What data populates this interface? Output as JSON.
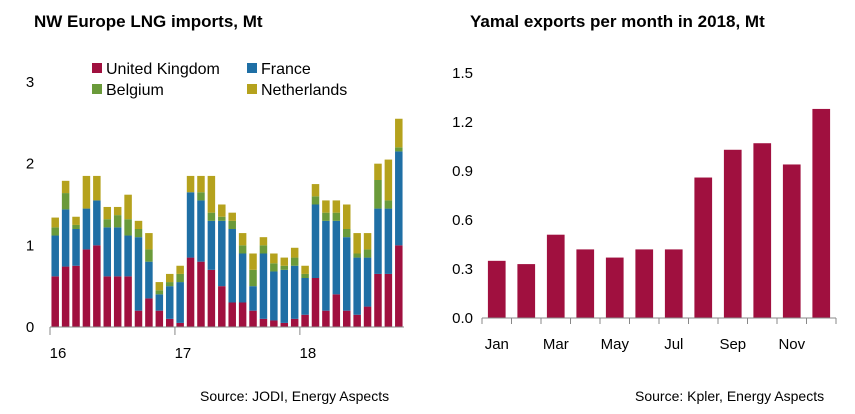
{
  "charts": {
    "left": {
      "title": "NW Europe LNG imports, Mt",
      "source": "Source:  JODI, Energy Aspects"
    },
    "right": {
      "title": "Yamal exports per month in 2018, Mt",
      "source": "Source:  Kpler, Energy Aspects"
    }
  },
  "chart_data": [
    {
      "type": "bar",
      "stacked": true,
      "title": "NW Europe LNG imports, Mt",
      "xlabel": "",
      "ylabel": "",
      "ylim": [
        0,
        3
      ],
      "yticks": [
        "0",
        "1",
        "2",
        "3"
      ],
      "xtick_labels": [
        {
          "index": 0,
          "label": "16"
        },
        {
          "index": 12,
          "label": "17"
        },
        {
          "index": 24,
          "label": "18"
        }
      ],
      "grid": false,
      "legend_placement": "top",
      "legend": [
        "United Kingdom",
        "France",
        "Belgium",
        "Netherlands"
      ],
      "colors": {
        "United Kingdom": "#a0103f",
        "France": "#1f6fa5",
        "Belgium": "#6a9a3a",
        "Netherlands": "#b5a21d"
      },
      "series": [
        {
          "name": "United Kingdom",
          "values": [
            0.62,
            0.74,
            0.75,
            0.95,
            1.0,
            0.62,
            0.62,
            0.62,
            0.2,
            0.35,
            0.2,
            0.1,
            0.05,
            0.85,
            0.8,
            0.7,
            0.5,
            0.3,
            0.3,
            0.2,
            0.1,
            0.08,
            0.05,
            0.1,
            0.15,
            0.6,
            0.2,
            0.4,
            0.2,
            0.15,
            0.25,
            0.65,
            0.65,
            1.0
          ]
        },
        {
          "name": "France",
          "values": [
            0.5,
            0.7,
            0.45,
            0.5,
            0.55,
            0.6,
            0.6,
            0.5,
            0.9,
            0.45,
            0.2,
            0.4,
            0.5,
            0.8,
            0.75,
            0.6,
            0.8,
            0.9,
            0.6,
            0.3,
            0.8,
            0.6,
            0.65,
            0.65,
            0.45,
            0.9,
            1.1,
            0.9,
            0.9,
            0.7,
            0.6,
            0.8,
            0.8,
            1.15
          ]
        },
        {
          "name": "Belgium",
          "values": [
            0.1,
            0.2,
            0.05,
            0.0,
            0.0,
            0.1,
            0.15,
            0.2,
            0.1,
            0.15,
            0.05,
            0.05,
            0.1,
            0.0,
            0.1,
            0.1,
            0.05,
            0.1,
            0.1,
            0.2,
            0.1,
            0.1,
            0.05,
            0.1,
            0.05,
            0.1,
            0.1,
            0.1,
            0.1,
            0.05,
            0.1,
            0.35,
            0.1,
            0.05
          ]
        },
        {
          "name": "Netherlands",
          "values": [
            0.12,
            0.15,
            0.1,
            0.4,
            0.3,
            0.15,
            0.1,
            0.3,
            0.1,
            0.2,
            0.1,
            0.1,
            0.1,
            0.2,
            0.2,
            0.45,
            0.15,
            0.1,
            0.15,
            0.2,
            0.1,
            0.12,
            0.1,
            0.12,
            0.1,
            0.15,
            0.15,
            0.15,
            0.3,
            0.25,
            0.2,
            0.2,
            0.5,
            0.35
          ]
        }
      ]
    },
    {
      "type": "bar",
      "title": "Yamal exports per month in 2018, Mt",
      "xlabel": "",
      "ylabel": "",
      "ylim": [
        0,
        1.5
      ],
      "yticks": [
        "0.0",
        "0.3",
        "0.6",
        "0.9",
        "1.2",
        "1.5"
      ],
      "categories": [
        "Jan",
        "Feb",
        "Mar",
        "Apr",
        "May",
        "Jun",
        "Jul",
        "Aug",
        "Sep",
        "Oct",
        "Nov",
        "Dec"
      ],
      "xtick_labels": [
        {
          "index": 0,
          "label": "Jan"
        },
        {
          "index": 2,
          "label": "Mar"
        },
        {
          "index": 4,
          "label": "May"
        },
        {
          "index": 6,
          "label": "Jul"
        },
        {
          "index": 8,
          "label": "Sep"
        },
        {
          "index": 10,
          "label": "Nov"
        }
      ],
      "grid": false,
      "color": "#a0103f",
      "values": [
        0.35,
        0.33,
        0.51,
        0.42,
        0.37,
        0.42,
        0.42,
        0.86,
        1.03,
        1.07,
        0.94,
        1.28
      ]
    }
  ]
}
